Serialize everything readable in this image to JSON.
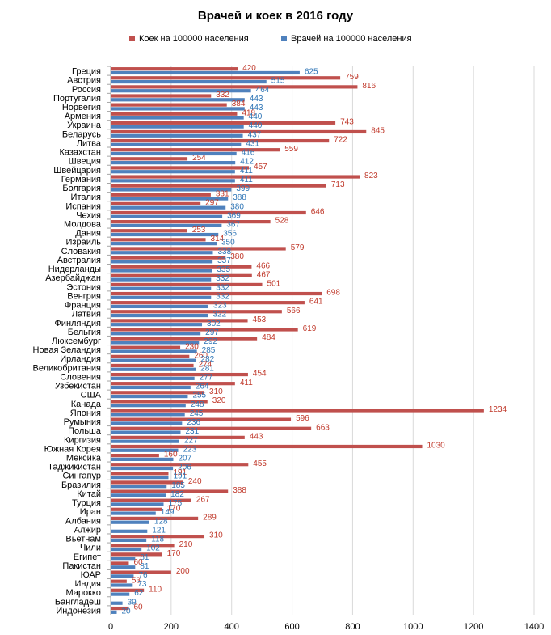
{
  "chart_data": {
    "type": "bar",
    "orientation": "horizontal",
    "title": "Врачей и коек в 2016 году",
    "xlim": [
      0,
      1400
    ],
    "xticks": [
      0,
      200,
      400,
      600,
      800,
      1000,
      1200,
      1400
    ],
    "grid": true,
    "legend_position": "top",
    "categories": [
      "Греция",
      "Австрия",
      "Россия",
      "Португалия",
      "Норвегия",
      "Армения",
      "Украина",
      "Беларусь",
      "Литва",
      "Казахстан",
      "Швеция",
      "Швейцария",
      "Германия",
      "Болгария",
      "Италия",
      "Испания",
      "Чехия",
      "Молдова",
      "Дания",
      "Израиль",
      "Словакия",
      "Австралия",
      "Нидерланды",
      "Азербайджан",
      "Эстония",
      "Венгрия",
      "Франция",
      "Латвия",
      "Финляндия",
      "Бельгия",
      "Люксембург",
      "Новая Зеландия",
      "Ирландия",
      "Великобритания",
      "Словения",
      "Узбекистан",
      "США",
      "Канада",
      "Япония",
      "Румыния",
      "Польша",
      "Киргизия",
      "Южная Корея",
      "Мексика",
      "Таджикистан",
      "Сингапур",
      "Бразилия",
      "Китай",
      "Турция",
      "Иран",
      "Албания",
      "Алжир",
      "Вьетнам",
      "Чили",
      "Египет",
      "Пакистан",
      "ЮАР",
      "Индия",
      "Марокко",
      "Бангладеш",
      "Индонезия"
    ],
    "series": [
      {
        "name": "Коек на 100000 населения",
        "color": "#c0504d",
        "label_color": "#c0392b",
        "values": [
          420,
          759,
          816,
          332,
          384,
          418,
          743,
          845,
          722,
          559,
          254,
          457,
          823,
          713,
          331,
          297,
          646,
          528,
          253,
          314,
          579,
          380,
          466,
          467,
          501,
          698,
          641,
          566,
          453,
          619,
          484,
          230,
          260,
          274,
          454,
          411,
          310,
          320,
          1234,
          596,
          663,
          443,
          1030,
          160,
          455,
          191,
          240,
          388,
          267,
          170,
          289,
          null,
          310,
          210,
          170,
          60,
          200,
          53,
          110,
          null,
          60
        ]
      },
      {
        "name": "Врачей на 100000 населения",
        "color": "#4f81bd",
        "label_color": "#2e75b6",
        "values": [
          625,
          515,
          464,
          443,
          443,
          440,
          440,
          437,
          431,
          416,
          412,
          411,
          411,
          399,
          388,
          380,
          369,
          367,
          356,
          350,
          338,
          337,
          335,
          332,
          332,
          332,
          323,
          322,
          302,
          297,
          292,
          285,
          282,
          281,
          277,
          264,
          255,
          248,
          245,
          236,
          231,
          227,
          223,
          207,
          206,
          191,
          185,
          182,
          175,
          149,
          128,
          121,
          118,
          102,
          81,
          81,
          76,
          73,
          62,
          39,
          20
        ]
      }
    ]
  }
}
